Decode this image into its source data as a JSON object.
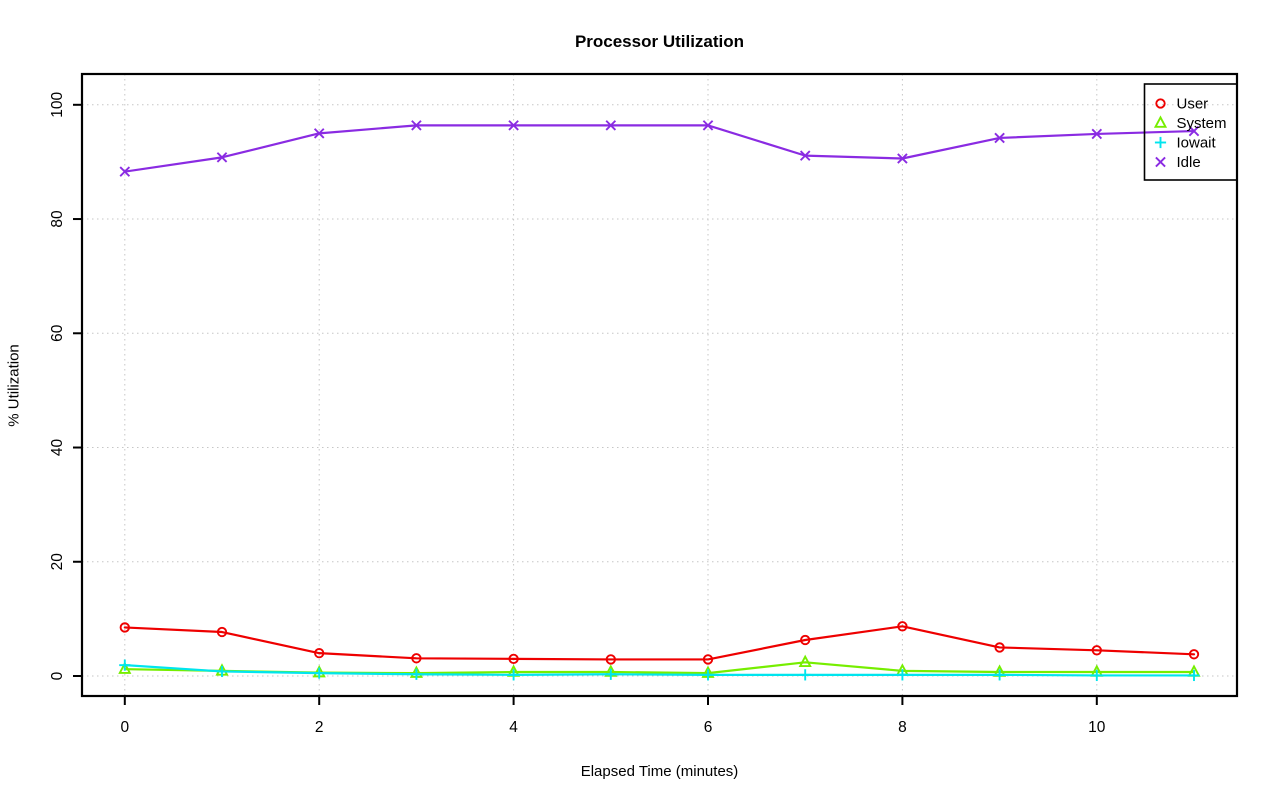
{
  "chart_data": {
    "type": "line",
    "title": "Processor Utilization",
    "xlabel": "Elapsed Time (minutes)",
    "ylabel": "% Utilization",
    "x": [
      0,
      1,
      2,
      3,
      4,
      5,
      6,
      7,
      8,
      9,
      10,
      11
    ],
    "xticks": [
      0,
      2,
      4,
      6,
      8,
      10
    ],
    "yticks": [
      0,
      20,
      40,
      60,
      80,
      100
    ],
    "xlim": [
      -0.44,
      11.44
    ],
    "ylim": [
      -3.5,
      105.4
    ],
    "grid": "dotted",
    "grid_color": "#c6c6c6",
    "axis_color": "#000000",
    "background_color": "#ffffff",
    "legend_position": "top-right",
    "legend_border": true,
    "series": [
      {
        "name": "User",
        "color": "#ee0000",
        "marker": "circle",
        "values": [
          8.5,
          7.7,
          4.0,
          3.1,
          3.0,
          2.9,
          2.9,
          6.3,
          8.7,
          5.0,
          4.5,
          3.8
        ]
      },
      {
        "name": "System",
        "color": "#76ee00",
        "marker": "triangle",
        "values": [
          1.2,
          0.9,
          0.6,
          0.5,
          0.7,
          0.7,
          0.5,
          2.4,
          0.9,
          0.7,
          0.7,
          0.7
        ]
      },
      {
        "name": "Iowait",
        "color": "#00e5ee",
        "marker": "plus",
        "values": [
          1.9,
          0.8,
          0.5,
          0.3,
          0.2,
          0.3,
          0.2,
          0.2,
          0.2,
          0.2,
          0.1,
          0.1
        ]
      },
      {
        "name": "Idle",
        "color": "#8a2be2",
        "marker": "x",
        "values": [
          88.3,
          90.8,
          95.0,
          96.4,
          96.4,
          96.4,
          96.4,
          91.1,
          90.6,
          94.2,
          94.9,
          95.4
        ]
      }
    ]
  }
}
